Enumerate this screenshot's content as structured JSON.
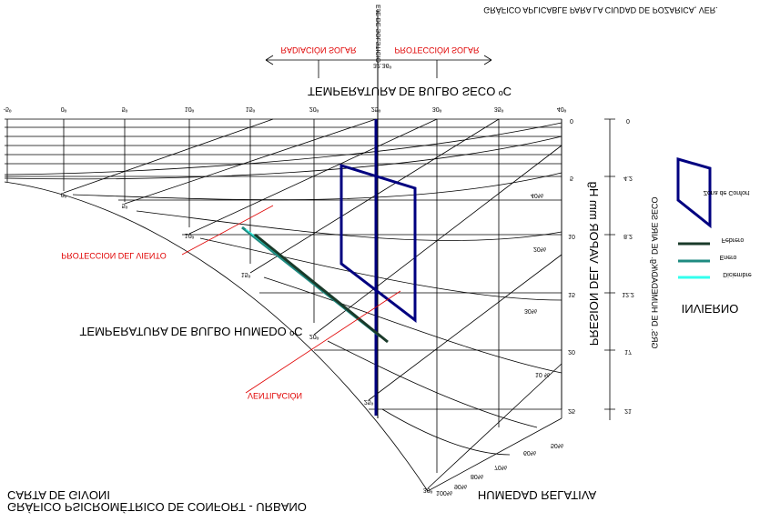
{
  "header": {
    "title": "GRÁFICO APLICABLE PARA LA CIUDAD DE POZARICA, VER.",
    "solstice_axis": "EJE DE SOLSTICIO",
    "solstice_angle": "32.36º",
    "radiation": "RADIACIÓN SOLAR",
    "protection": "PROTECCIÓN SOLAR"
  },
  "axes": {
    "dry_bulb_title": "TEMPERATURA DE BULBO SECO ºC",
    "dry_bulb_ticks": [
      "-5º",
      "0º",
      "5º",
      "10º",
      "15º",
      "20º",
      "25º",
      "30º",
      "35º",
      "40º"
    ],
    "vapour_title": "PRESION DEL VAPOR mm Hg",
    "vapour_ticks": [
      "0",
      "5",
      "10",
      "15",
      "20",
      "25"
    ],
    "humidity_title": "GRS. DE HUMEDAD/Kg. DE AIRE SECO",
    "humidity_ticks": [
      "0",
      "4.2",
      "8.2",
      "12.2",
      "17",
      "21"
    ],
    "wet_bulb_title": "TEMPERATURA DE BULBO HUMEDO ºC",
    "wet_bulb_ticks": [
      "0º",
      "5º",
      "10º",
      "15º",
      "20º",
      "25º",
      "30º"
    ],
    "relative_title": "HUMEDAD RELATIVA",
    "relative_ticks": [
      "10 %",
      "20%",
      "30%",
      "40%",
      "50%",
      "60%",
      "70%",
      "80%",
      "90%",
      "100%"
    ]
  },
  "annotations": {
    "wind": "PROTECCION DEL VIENTO",
    "ventilation": "VENTILACIÓN"
  },
  "legend": {
    "comfort": "Zona de Confort",
    "febrero": "Febrero",
    "enero": "Enero",
    "diciembre": "Diciembre",
    "season": "INVIERNO"
  },
  "footer": {
    "line1": "CARTA DE GIVONI",
    "line2": "GRÁFICO PSICROMÉTRICO DE CONFORT - URBANO"
  }
}
